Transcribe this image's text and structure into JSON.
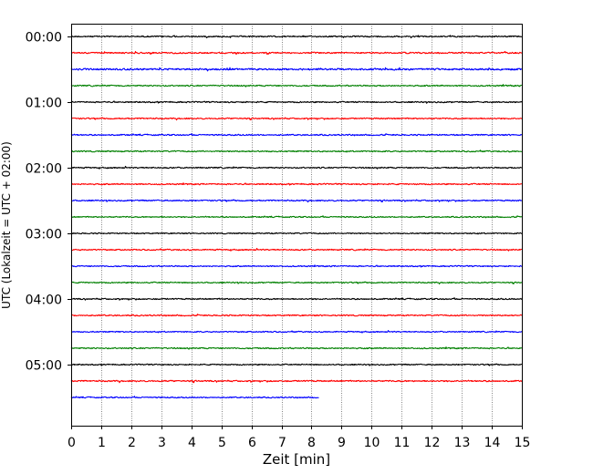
{
  "chart_data": {
    "type": "line",
    "chart_kind": "helicorder",
    "xlabel": "Zeit  [min]",
    "ylabel": "UTC (Lokalzeit = UTC + 02:00)",
    "xlim": [
      0,
      15
    ],
    "x_ticks": [
      0,
      1,
      2,
      3,
      4,
      5,
      6,
      7,
      8,
      9,
      10,
      11,
      12,
      13,
      14,
      15
    ],
    "x_tick_labels": [
      "0",
      "1",
      "2",
      "3",
      "4",
      "5",
      "6",
      "7",
      "8",
      "9",
      "10",
      "11",
      "12",
      "13",
      "14",
      "15"
    ],
    "y_tick_labels": [
      "00:00",
      "01:00",
      "02:00",
      "03:00",
      "04:00",
      "05:00"
    ],
    "line_minutes": 15,
    "vertical_grid": true,
    "trace_colors": [
      "#000000",
      "#ff0000",
      "#0000ff",
      "#008000"
    ],
    "traces": [
      {
        "start": "00:00",
        "color": "#000000",
        "end_minute": 15,
        "amplitude": 1.2
      },
      {
        "start": "00:15",
        "color": "#ff0000",
        "end_minute": 15,
        "amplitude": 1.3
      },
      {
        "start": "00:30",
        "color": "#0000ff",
        "end_minute": 15,
        "amplitude": 1.6
      },
      {
        "start": "00:45",
        "color": "#008000",
        "end_minute": 15,
        "amplitude": 1.2
      },
      {
        "start": "01:00",
        "color": "#000000",
        "end_minute": 15,
        "amplitude": 1.2
      },
      {
        "start": "01:15",
        "color": "#ff0000",
        "end_minute": 15,
        "amplitude": 1.2
      },
      {
        "start": "01:30",
        "color": "#0000ff",
        "end_minute": 15,
        "amplitude": 1.2
      },
      {
        "start": "01:45",
        "color": "#008000",
        "end_minute": 15,
        "amplitude": 1.2
      },
      {
        "start": "02:00",
        "color": "#000000",
        "end_minute": 15,
        "amplitude": 1.2
      },
      {
        "start": "02:15",
        "color": "#ff0000",
        "end_minute": 15,
        "amplitude": 1.2
      },
      {
        "start": "02:30",
        "color": "#0000ff",
        "end_minute": 15,
        "amplitude": 1.2
      },
      {
        "start": "02:45",
        "color": "#008000",
        "end_minute": 15,
        "amplitude": 1.1
      },
      {
        "start": "03:00",
        "color": "#000000",
        "end_minute": 15,
        "amplitude": 1.1
      },
      {
        "start": "03:15",
        "color": "#ff0000",
        "end_minute": 15,
        "amplitude": 1.2
      },
      {
        "start": "03:30",
        "color": "#0000ff",
        "end_minute": 15,
        "amplitude": 1.1
      },
      {
        "start": "03:45",
        "color": "#008000",
        "end_minute": 15,
        "amplitude": 1.1
      },
      {
        "start": "04:00",
        "color": "#000000",
        "end_minute": 15,
        "amplitude": 1.2
      },
      {
        "start": "04:15",
        "color": "#ff0000",
        "end_minute": 15,
        "amplitude": 1.2
      },
      {
        "start": "04:30",
        "color": "#0000ff",
        "end_minute": 15,
        "amplitude": 1.1
      },
      {
        "start": "04:45",
        "color": "#008000",
        "end_minute": 15,
        "amplitude": 1.2
      },
      {
        "start": "05:00",
        "color": "#000000",
        "end_minute": 15,
        "amplitude": 1.1
      },
      {
        "start": "05:15",
        "color": "#ff0000",
        "end_minute": 15,
        "amplitude": 1.3
      },
      {
        "start": "05:30",
        "color": "#0000ff",
        "end_minute": 8.25,
        "amplitude": 1.1
      }
    ]
  }
}
